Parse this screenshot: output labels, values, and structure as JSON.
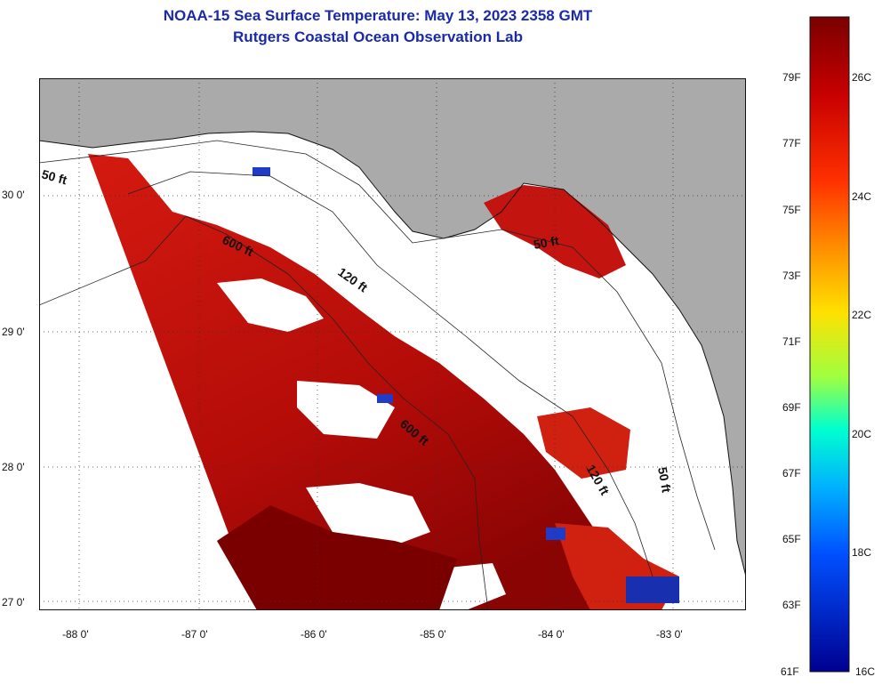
{
  "title": "NOAA-15 Sea Surface Temperature:  May 13, 2023 2358 GMT",
  "subtitle": "Rutgers Coastal Ocean Observation Lab",
  "axes": {
    "x_ticks": [
      "-88 0'",
      "-87 0'",
      "-86 0'",
      "-85 0'",
      "-84 0'",
      "-83 0'"
    ],
    "y_ticks": [
      "30 0'",
      "29 0'",
      "28 0'",
      "27 0'"
    ]
  },
  "contours": [
    "50 ft",
    "600 ft",
    "120 ft",
    "600 ft",
    "50 ft",
    "120 ft",
    "50 ft"
  ],
  "colorbar": {
    "f_labels": [
      "79F",
      "77F",
      "75F",
      "73F",
      "71F",
      "69F",
      "67F",
      "65F",
      "63F",
      "61F"
    ],
    "c_labels": [
      "26C",
      "24C",
      "22C",
      "20C",
      "18C",
      "16C"
    ]
  },
  "colors": {
    "land": "#aaaaaa",
    "cloud": "#ffffff",
    "title": "#1a2aa8"
  }
}
